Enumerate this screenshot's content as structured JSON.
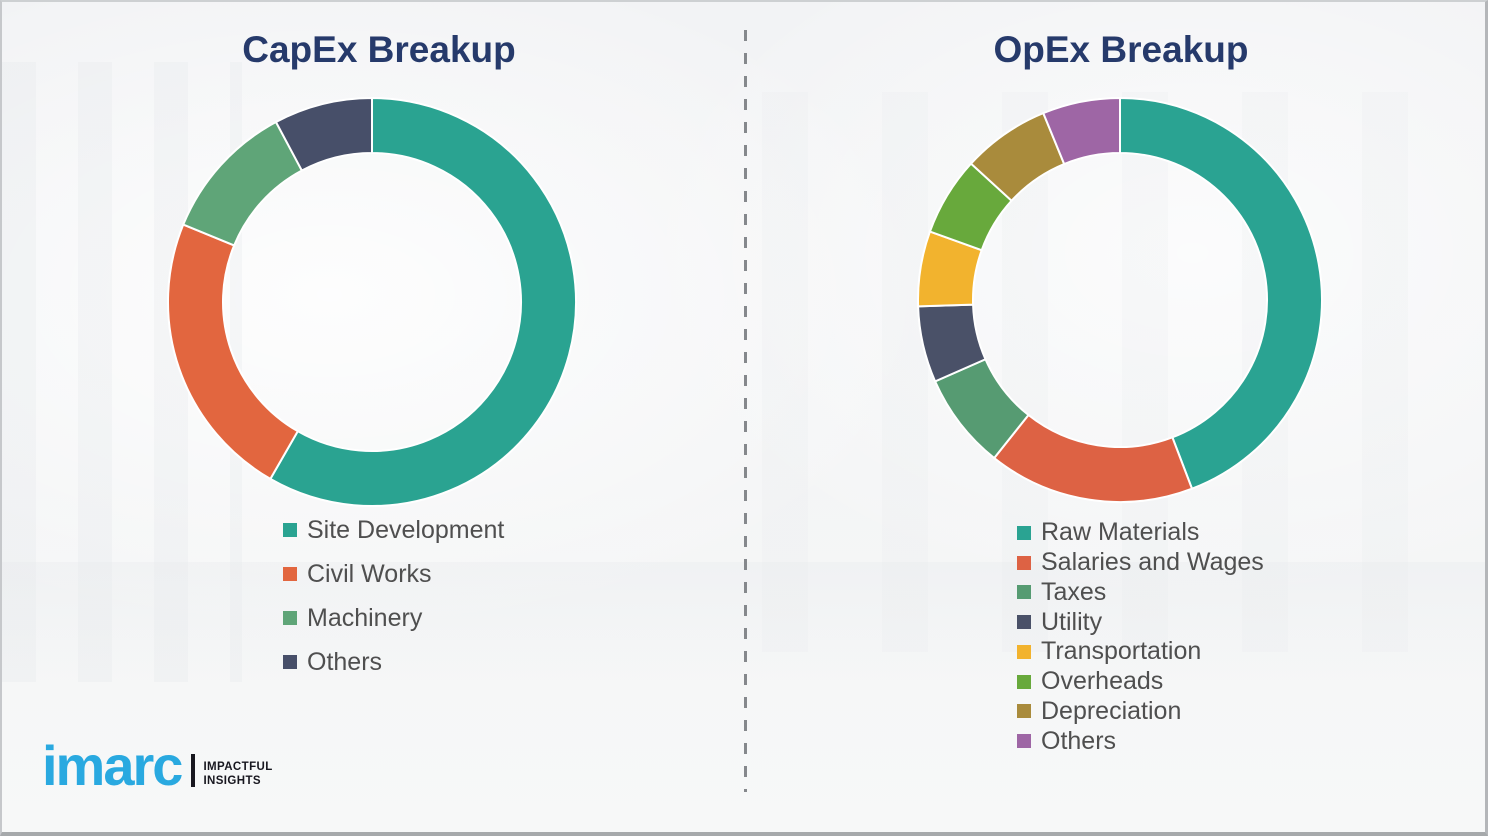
{
  "chart_data": [
    {
      "type": "pie",
      "subtype": "donut",
      "title": "CapEx Breakup",
      "categories": [
        "Site Development",
        "Civil Works",
        "Machinery",
        "Others"
      ],
      "values": [
        58.3,
        22.9,
        11.0,
        7.8
      ],
      "unit": "percent-of-ring",
      "colors": [
        "#2aa391",
        "#e2663f",
        "#5fa578",
        "#474f69"
      ],
      "start_angle_deg": 0,
      "direction": "clockwise",
      "legend_position": "below-left",
      "data_labels_shown": false
    },
    {
      "type": "pie",
      "subtype": "donut",
      "title": "OpEx Breakup",
      "categories": [
        "Raw Materials",
        "Salaries and Wages",
        "Taxes",
        "Utility",
        "Transportation",
        "Overheads",
        "Depreciation",
        "Others"
      ],
      "values": [
        44.2,
        16.5,
        7.7,
        6.1,
        6.0,
        6.3,
        7.0,
        6.2
      ],
      "unit": "percent-of-ring",
      "colors": [
        "#2aa392",
        "#dd6244",
        "#569b72",
        "#4a5168",
        "#f2b32e",
        "#68a93c",
        "#a98b3c",
        "#9e66a5"
      ],
      "start_angle_deg": 0,
      "direction": "clockwise",
      "legend_position": "below-left",
      "data_labels_shown": false
    }
  ],
  "logo": {
    "brand": "imarc",
    "tagline_line1": "IMPACTFUL",
    "tagline_line2": "INSIGHTS",
    "brand_color": "#29a9e0"
  },
  "theme": {
    "title_color": "#263a6b",
    "legend_text_color": "#4f4f4f",
    "divider_color": "#85888c",
    "background_color": "#f3f4f5",
    "segment_gap_color": "#ffffff"
  }
}
